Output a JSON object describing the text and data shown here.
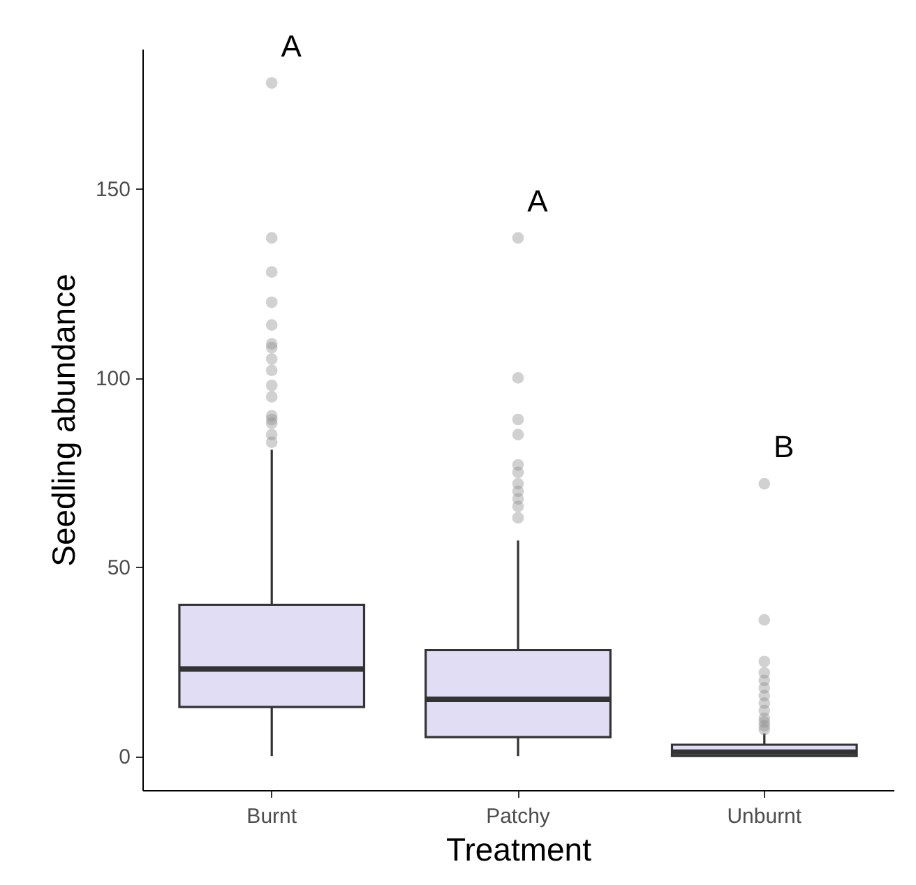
{
  "chart_data": {
    "type": "box",
    "xlabel": "Treatment",
    "ylabel": "Seedling abundance",
    "categories": [
      "Burnt",
      "Patchy",
      "Unburnt"
    ],
    "series": [
      {
        "color": "#e1ddf5",
        "boxes": [
          {
            "low": 0,
            "q1": 13,
            "median": 23,
            "q3": 40,
            "high": 81,
            "outliers": [
              178,
              137,
              128,
              120,
              114,
              109,
              108,
              105,
              102,
              98,
              95,
              90,
              89,
              88,
              85,
              83
            ]
          },
          {
            "low": 0,
            "q1": 5,
            "median": 15,
            "q3": 28,
            "high": 57,
            "outliers": [
              137,
              100,
              89,
              85,
              77,
              75,
              72,
              70,
              68,
              66,
              63
            ]
          },
          {
            "low": 0,
            "q1": 0,
            "median": 1,
            "q3": 3,
            "high": 6,
            "outliers": [
              72,
              36,
              25,
              22,
              20,
              18,
              16,
              14,
              12,
              10,
              9,
              8,
              7
            ]
          }
        ]
      }
    ],
    "ylim": [
      -9,
      187
    ],
    "yticks": [
      0,
      50,
      100,
      150
    ],
    "grid": false,
    "annotations": [
      "A",
      "A",
      "B"
    ]
  }
}
